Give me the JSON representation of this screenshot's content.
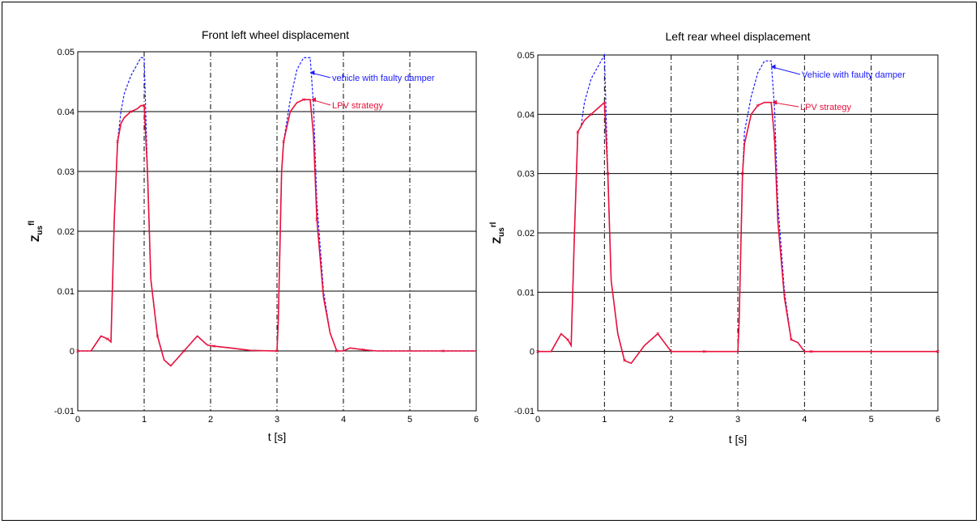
{
  "chart_data": [
    {
      "type": "line",
      "title": "Front left wheel displacement",
      "xlabel": "t [s]",
      "ylabel_main": "Z",
      "ylabel_sub": "us",
      "ylabel_sup": "fl",
      "xlim": [
        0,
        6
      ],
      "ylim": [
        -0.01,
        0.05
      ],
      "xticks": [
        "0",
        "1",
        "2",
        "3",
        "4",
        "5",
        "6"
      ],
      "yticks": [
        "-0.01",
        "0",
        "0.01",
        "0.02",
        "0.03",
        "0.04",
        "0.05"
      ],
      "grid": true,
      "series": [
        {
          "name": "vehicle with faulty damper",
          "color": "#1a1aff",
          "style": "dashed",
          "x": [
            0,
            0.2,
            0.35,
            0.45,
            0.5,
            0.55,
            0.6,
            0.65,
            0.7,
            0.8,
            0.9,
            0.95,
            1.0,
            1.05,
            1.1,
            1.2,
            1.3,
            1.4,
            1.6,
            1.8,
            1.95,
            2.05,
            2.3,
            2.6,
            3.0,
            3.02,
            3.07,
            3.1,
            3.2,
            3.3,
            3.4,
            3.5,
            3.55,
            3.6,
            3.7,
            3.8,
            3.9,
            4.0,
            4.1,
            4.3,
            4.5,
            5.0,
            5.5,
            6.0
          ],
          "y": [
            0,
            0,
            0.0025,
            0.002,
            0.0015,
            0.022,
            0.035,
            0.04,
            0.043,
            0.046,
            0.048,
            0.049,
            0.049,
            0.03,
            0.012,
            0.0025,
            -0.0015,
            -0.0025,
            0,
            0.0025,
            0.001,
            0.0008,
            0.0005,
            0.0001,
            0,
            0.005,
            0.03,
            0.035,
            0.042,
            0.047,
            0.049,
            0.049,
            0.041,
            0.025,
            0.01,
            0.003,
            0,
            0,
            0.0005,
            0.0002,
            0,
            0,
            0,
            0
          ]
        },
        {
          "name": "LPV strategy",
          "color": "#e8103a",
          "style": "solid",
          "x": [
            0,
            0.2,
            0.35,
            0.45,
            0.5,
            0.55,
            0.6,
            0.65,
            0.7,
            0.8,
            0.9,
            0.95,
            1.0,
            1.05,
            1.1,
            1.2,
            1.3,
            1.4,
            1.6,
            1.8,
            1.95,
            2.05,
            2.3,
            2.6,
            3.0,
            3.02,
            3.07,
            3.1,
            3.2,
            3.3,
            3.4,
            3.5,
            3.55,
            3.6,
            3.7,
            3.8,
            3.9,
            4.0,
            4.1,
            4.3,
            4.5,
            5.0,
            5.5,
            6.0
          ],
          "y": [
            0,
            0,
            0.0025,
            0.002,
            0.0015,
            0.022,
            0.035,
            0.038,
            0.039,
            0.04,
            0.0405,
            0.041,
            0.041,
            0.03,
            0.012,
            0.0025,
            -0.0015,
            -0.0025,
            0,
            0.0025,
            0.001,
            0.0008,
            0.0005,
            0.0001,
            0,
            0.005,
            0.03,
            0.035,
            0.04,
            0.0415,
            0.042,
            0.042,
            0.036,
            0.022,
            0.009,
            0.003,
            0,
            0,
            0.0005,
            0.0002,
            0,
            0,
            0,
            0
          ]
        }
      ],
      "annotations": [
        "vehicle with faulty damper",
        "LPV strategy"
      ]
    },
    {
      "type": "line",
      "title": "Left rear wheel displacement",
      "xlabel": "t [s]",
      "ylabel_main": "Z",
      "ylabel_sub": "us",
      "ylabel_sup": "rl",
      "xlim": [
        0,
        6
      ],
      "ylim": [
        -0.01,
        0.05
      ],
      "xticks": [
        "0",
        "1",
        "2",
        "3",
        "4",
        "5",
        "6"
      ],
      "yticks": [
        "-0.01",
        "0",
        "0.01",
        "0.02",
        "0.03",
        "0.04",
        "0.05"
      ],
      "grid": true,
      "series": [
        {
          "name": "Vehicle with faulty damper",
          "color": "#1a1aff",
          "style": "dashed",
          "x": [
            0,
            0.2,
            0.35,
            0.45,
            0.5,
            0.55,
            0.6,
            0.65,
            0.7,
            0.8,
            0.9,
            1.0,
            1.05,
            1.1,
            1.2,
            1.3,
            1.4,
            1.6,
            1.8,
            1.9,
            2.0,
            2.5,
            3.0,
            3.02,
            3.07,
            3.1,
            3.2,
            3.3,
            3.4,
            3.5,
            3.55,
            3.6,
            3.7,
            3.8,
            3.9,
            4.0,
            4.1,
            4.3,
            5.0,
            6.0
          ],
          "y": [
            0,
            0,
            0.003,
            0.002,
            0.001,
            0.02,
            0.037,
            0.038,
            0.042,
            0.046,
            0.048,
            0.05,
            0.03,
            0.012,
            0.003,
            -0.0015,
            -0.002,
            0.001,
            0.003,
            0.0015,
            0,
            0,
            0,
            0.005,
            0.03,
            0.037,
            0.043,
            0.047,
            0.049,
            0.049,
            0.041,
            0.025,
            0.01,
            0.002,
            0.0015,
            0,
            0,
            0,
            0,
            0
          ]
        },
        {
          "name": "LPV strategy",
          "color": "#e8103a",
          "style": "solid",
          "x": [
            0,
            0.2,
            0.35,
            0.45,
            0.5,
            0.55,
            0.6,
            0.65,
            0.7,
            0.8,
            0.9,
            1.0,
            1.05,
            1.1,
            1.2,
            1.3,
            1.4,
            1.6,
            1.8,
            1.9,
            2.0,
            2.5,
            3.0,
            3.02,
            3.07,
            3.1,
            3.2,
            3.3,
            3.4,
            3.5,
            3.55,
            3.6,
            3.7,
            3.8,
            3.9,
            4.0,
            4.1,
            4.3,
            5.0,
            6.0
          ],
          "y": [
            0,
            0,
            0.003,
            0.002,
            0.001,
            0.02,
            0.037,
            0.038,
            0.039,
            0.04,
            0.041,
            0.042,
            0.03,
            0.012,
            0.003,
            -0.0015,
            -0.002,
            0.001,
            0.003,
            0.0015,
            0,
            0,
            0,
            0.005,
            0.03,
            0.035,
            0.04,
            0.0415,
            0.042,
            0.042,
            0.036,
            0.022,
            0.009,
            0.002,
            0.0015,
            0,
            0,
            0,
            0,
            0
          ]
        }
      ],
      "annotations": [
        "Vehicle with faulty damper",
        "LPV strategy"
      ]
    }
  ]
}
